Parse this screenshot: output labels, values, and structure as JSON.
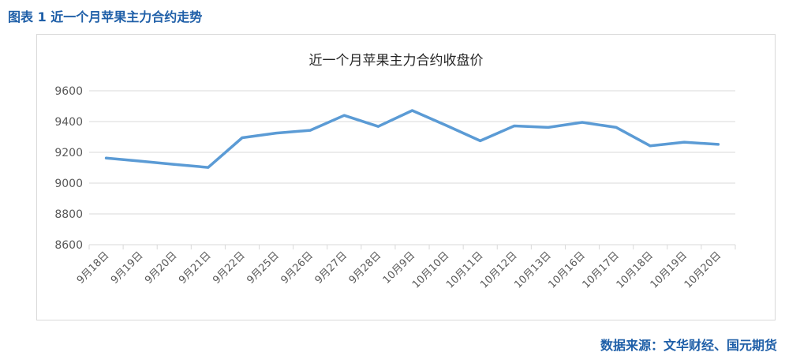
{
  "figure_caption": "图表 1  近一个月苹果主力合约走势",
  "source_note": "数据来源：文华财经、国元期货",
  "colors": {
    "caption": "#1f5fa8",
    "line": "#5b9bd5",
    "grid": "#d9d9d9",
    "axis_text": "#595959"
  },
  "chart_data": {
    "type": "line",
    "title": "近一个月苹果主力合约收盘价",
    "xlabel": "",
    "ylabel": "",
    "categories": [
      "9月18日",
      "9月19日",
      "9月20日",
      "9月21日",
      "9月22日",
      "9月25日",
      "9月26日",
      "9月27日",
      "9月28日",
      "10月9日",
      "10月10日",
      "10月11日",
      "10月12日",
      "10月13日",
      "10月16日",
      "10月17日",
      "10月18日",
      "10月19日",
      "10月20日"
    ],
    "values": [
      9163,
      9143,
      9122,
      9102,
      9295,
      9325,
      9343,
      9440,
      9368,
      9472,
      9375,
      9275,
      9372,
      9362,
      9395,
      9362,
      9242,
      9266,
      9252
    ],
    "ylim": [
      8600,
      9600
    ],
    "yticks": [
      "9600",
      "9400",
      "9200",
      "9000",
      "8800",
      "8600"
    ],
    "grid": true,
    "legend": "none"
  }
}
